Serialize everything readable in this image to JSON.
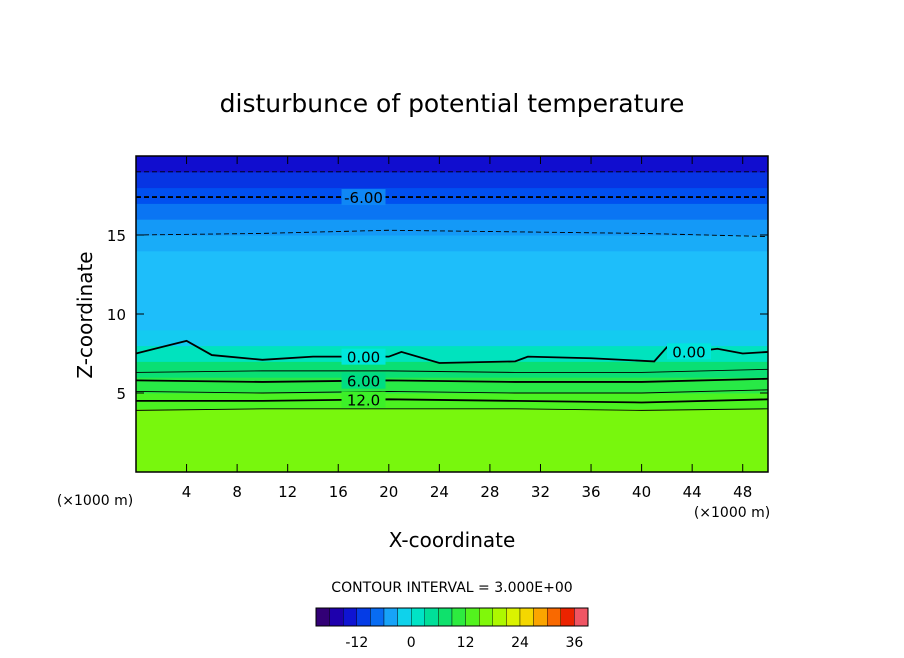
{
  "chart_data": {
    "type": "contour",
    "title": "disturbunce of potential temperature",
    "x_label": "X-coordinate",
    "y_label": "Z-coordinate",
    "x_unit_label": "(×1000 m)",
    "y_unit_label": "(×1000 m)",
    "xlim": [
      0,
      50
    ],
    "xticks": [
      4,
      8,
      12,
      16,
      20,
      24,
      28,
      32,
      36,
      40,
      44,
      48
    ],
    "ylim": [
      0,
      20
    ],
    "yticks": [
      5,
      10,
      15
    ],
    "field": {
      "z": [
        0,
        1,
        2,
        3,
        4,
        5,
        6,
        7,
        8,
        9,
        10,
        11,
        12,
        13,
        14,
        15,
        16,
        17,
        18,
        19
      ],
      "values": [
        16,
        16,
        16,
        16,
        13,
        10,
        7,
        2,
        -2,
        -3,
        -3,
        -3,
        -3,
        -3,
        -4,
        -5,
        -7,
        -9,
        -11,
        -14
      ]
    },
    "contours": [
      {
        "level": -9,
        "x": [
          0,
          50
        ],
        "y": [
          19,
          19
        ]
      },
      {
        "level": -6,
        "value_label": "-6.00",
        "x": [
          0,
          50
        ],
        "y": [
          17.4,
          17.4
        ]
      },
      {
        "level": -3,
        "x": [
          0,
          10,
          20,
          30,
          40,
          50
        ],
        "y": [
          15,
          15.1,
          15.3,
          15.2,
          15.1,
          14.9
        ]
      },
      {
        "level": 0,
        "value_label": "0.00",
        "x": [
          0,
          2,
          4,
          6,
          10,
          14,
          20,
          21,
          24,
          30,
          31,
          36,
          41,
          42,
          44,
          46,
          48,
          50
        ],
        "y": [
          7.5,
          7.9,
          8.3,
          7.4,
          7.1,
          7.3,
          7.3,
          7.6,
          6.9,
          7.0,
          7.3,
          7.2,
          7.0,
          7.9,
          7.6,
          7.8,
          7.5,
          7.6
        ]
      },
      {
        "level": 3,
        "x": [
          0,
          10,
          20,
          30,
          40,
          50
        ],
        "y": [
          6.3,
          6.4,
          6.4,
          6.3,
          6.3,
          6.5
        ]
      },
      {
        "level": 6,
        "value_label": "6.00",
        "x": [
          0,
          10,
          20,
          30,
          40,
          50
        ],
        "y": [
          5.8,
          5.7,
          5.8,
          5.7,
          5.7,
          5.9
        ]
      },
      {
        "level": 9,
        "x": [
          0,
          10,
          20,
          30,
          40,
          50
        ],
        "y": [
          5.1,
          5.0,
          5.1,
          5.0,
          5.0,
          5.2
        ]
      },
      {
        "level": 12,
        "value_label": "12.0",
        "x": [
          0,
          10,
          20,
          30,
          40,
          50
        ],
        "y": [
          4.5,
          4.5,
          4.6,
          4.5,
          4.4,
          4.6
        ]
      },
      {
        "level": 15,
        "x": [
          0,
          10,
          20,
          30,
          40,
          50
        ],
        "y": [
          3.9,
          4.0,
          4.0,
          4.0,
          3.9,
          4.0
        ]
      }
    ],
    "colorbar": {
      "title": "CONTOUR INTERVAL = 3.000E+00",
      "levels": [
        -21,
        -18,
        -15,
        -12,
        -9,
        -6,
        -3,
        0,
        3,
        6,
        9,
        12,
        15,
        18,
        21,
        24,
        27,
        30,
        33,
        36,
        39
      ],
      "clim": [
        -21,
        39
      ],
      "ticks": [
        -12,
        0,
        12,
        24,
        36
      ]
    }
  }
}
